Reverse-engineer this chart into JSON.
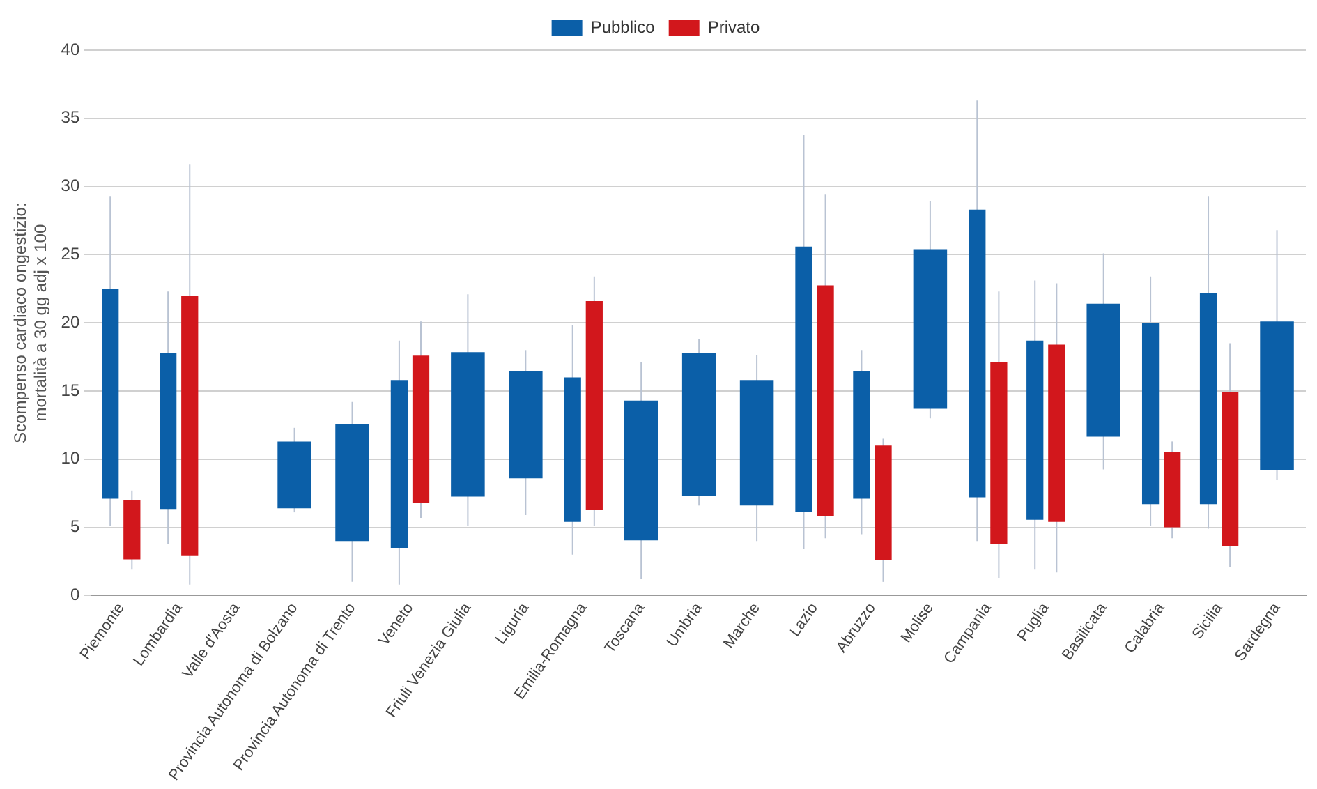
{
  "chart_data": {
    "type": "bar",
    "ylabel": "Scompenso cardiaco ongestizio:\nmortalità a 30 gg adj x 100",
    "categories": [
      "Piemonte",
      "Lombardia",
      "Valle d'Aosta",
      "Provincia Autonoma di Bolzano",
      "Provincia Autonoma di Trento",
      "Veneto",
      "Friuli Venezia Giulia",
      "Liguria",
      "Emilia-Romagna",
      "Toscana",
      "Umbria",
      "Marche",
      "Lazio",
      "Abruzzo",
      "Molise",
      "Campania",
      "Puglia",
      "Basilicata",
      "Calabria",
      "Sicilia",
      "Sardegna"
    ],
    "series": [
      {
        "name": "Pubblico",
        "color": "#0b5fa8",
        "base": [
          7.1,
          6.35,
          null,
          6.4,
          4.0,
          3.5,
          7.25,
          8.6,
          5.4,
          4.05,
          7.3,
          6.6,
          6.1,
          7.1,
          13.7,
          7.2,
          5.55,
          11.65,
          6.7,
          6.7,
          9.2
        ],
        "values": [
          15.4,
          11.45,
          null,
          4.9,
          8.6,
          12.3,
          10.6,
          7.85,
          10.6,
          10.25,
          10.5,
          9.2,
          19.5,
          9.35,
          11.7,
          21.1,
          13.15,
          9.75,
          13.3,
          15.5,
          10.9
        ],
        "errors": [
          [
            5.1,
            29.3
          ],
          [
            3.8,
            22.3
          ],
          null,
          [
            6.1,
            12.3
          ],
          [
            1.0,
            14.2
          ],
          [
            0.8,
            18.7
          ],
          [
            5.1,
            22.1
          ],
          [
            5.9,
            18.0
          ],
          [
            3.0,
            19.85
          ],
          [
            1.2,
            17.1
          ],
          [
            6.6,
            18.8
          ],
          [
            4.0,
            17.65
          ],
          [
            3.4,
            33.8
          ],
          [
            4.5,
            18.0
          ],
          [
            13.0,
            28.9
          ],
          [
            4.0,
            36.3
          ],
          [
            1.9,
            23.1
          ],
          [
            9.25,
            25.1
          ],
          [
            5.1,
            23.4
          ],
          [
            4.9,
            29.3
          ],
          [
            8.5,
            26.8
          ]
        ]
      },
      {
        "name": "Privato",
        "color": "#d2171c",
        "base": [
          2.65,
          2.95,
          null,
          null,
          null,
          6.8,
          null,
          null,
          6.3,
          null,
          null,
          null,
          5.85,
          2.6,
          null,
          3.8,
          5.4,
          null,
          5.0,
          3.6,
          null
        ],
        "values": [
          4.35,
          19.05,
          null,
          null,
          null,
          10.8,
          null,
          null,
          15.3,
          null,
          null,
          null,
          16.9,
          8.4,
          null,
          13.3,
          13.0,
          null,
          5.5,
          11.3,
          null
        ],
        "errors": [
          [
            1.9,
            7.7
          ],
          [
            0.8,
            31.6
          ],
          null,
          null,
          null,
          [
            5.7,
            20.1
          ],
          null,
          null,
          [
            5.1,
            23.4
          ],
          null,
          null,
          null,
          [
            4.2,
            29.4
          ],
          [
            1.0,
            11.5
          ],
          null,
          [
            1.3,
            22.3
          ],
          [
            1.7,
            22.9
          ],
          null,
          [
            4.2,
            11.3
          ],
          [
            2.1,
            18.5
          ],
          null
        ]
      }
    ],
    "ylim": [
      0,
      40
    ],
    "yticks": [
      0,
      5,
      10,
      15,
      20,
      25,
      30,
      35,
      40
    ],
    "grid": "y",
    "legend": "top"
  }
}
